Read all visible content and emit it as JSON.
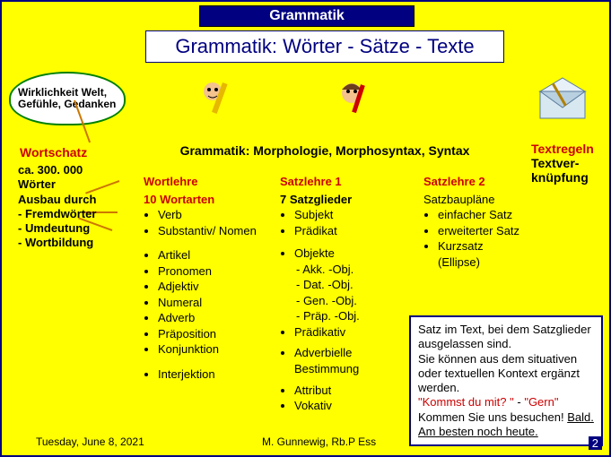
{
  "header": {
    "title": "Grammatik",
    "subtitle": "Grammatik: Wörter - Sätze - Texte"
  },
  "bubble": "Wirklichkeit Welt, Gefühle, Gedanken",
  "wortschatz": {
    "title": "Wortschatz",
    "lines": "ca. 300. 000 Wörter Ausbau durch - Fremdwörter - Umdeutung - Wortbildung"
  },
  "grammar_band": "Grammatik: Morphologie, Morphosyntax, Syntax",
  "wortlehre": {
    "head": "Wortlehre",
    "sub": "10 Wortarten",
    "items1": [
      "Verb",
      "Substantiv/ Nomen"
    ],
    "items2": [
      "Artikel",
      "Pronomen",
      "Adjektiv",
      "Numeral",
      "Adverb",
      "Präposition",
      "Konjunktion"
    ],
    "items3": [
      "Interjektion"
    ]
  },
  "satz1": {
    "head": "Satzlehre 1",
    "sub": "7 Satzglieder",
    "items1": [
      "Subjekt",
      "Prädikat"
    ],
    "items2": [
      "Objekte"
    ],
    "obj_sub": [
      "- Akk. -Obj.",
      "- Dat. -Obj.",
      "- Gen. -Obj.",
      "- Präp. -Obj."
    ],
    "items3": [
      "Prädikativ"
    ],
    "items4": [
      "Adverbielle Bestimmung"
    ],
    "items5": [
      "Attribut",
      "Vokativ"
    ]
  },
  "satz2": {
    "head": "Satzlehre 2",
    "sub": "Satzbaupläne",
    "items": [
      "einfacher Satz",
      "erweiterter Satz",
      "Kurzsatz (Ellipse)"
    ]
  },
  "textregeln": {
    "head": "Textregeln",
    "body": "Textver-knüpfung"
  },
  "callout": {
    "lines": [
      "Satz im Text, bei dem Satzglieder ausgelassen sind.",
      "Sie können aus dem situativen oder textuellen Kontext ergänzt werden."
    ],
    "quote1a": "\"Kommst du mit? \"",
    "quote1b": " - ",
    "quote1c": "\"Gern\"",
    "quote2": "Kommen Sie uns besuchen! ",
    "quote2u": "Bald.",
    "quote3a": "Am besten ",
    "quote3u": "noch heute."
  },
  "footer": {
    "date": "Tuesday, June 8, 2021",
    "mid": "M. Gunnewig, Rb.P   Ess",
    "num": "2"
  },
  "colors": {
    "bg": "#ffff00",
    "navy": "#000080",
    "red": "#cc0000",
    "green": "#008000"
  }
}
